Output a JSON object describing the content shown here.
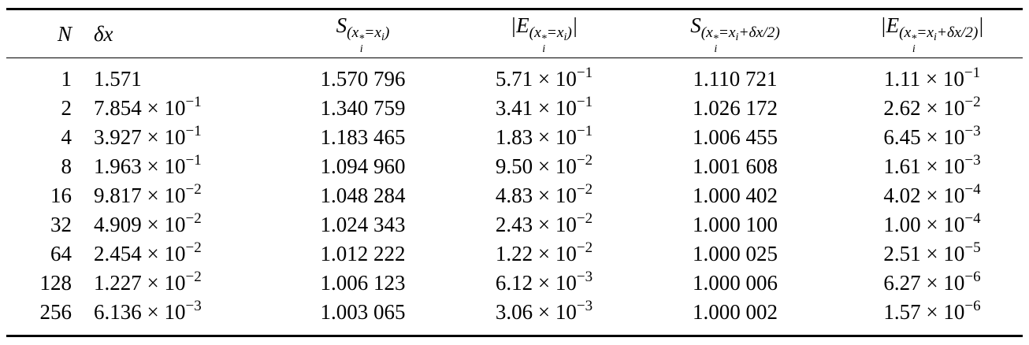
{
  "table": {
    "header": [
      [
        {
          "text": "N"
        }
      ],
      [
        {
          "text": "δx"
        }
      ],
      [
        {
          "text": "S",
          "sub": [
            {
              "text": "(x",
              "sub": [
                {
                  "text": "i"
                }
              ],
              "sup": [
                {
                  "text": "*"
                }
              ]
            },
            {
              "text": "=x",
              "sub": [
                {
                  "text": "i"
                }
              ]
            },
            {
              "text": ")"
            }
          ]
        }
      ],
      [
        {
          "text": "|E",
          "sub": [
            {
              "text": "(x",
              "sub": [
                {
                  "text": "i"
                }
              ],
              "sup": [
                {
                  "text": "*"
                }
              ]
            },
            {
              "text": "=x",
              "sub": [
                {
                  "text": "i"
                }
              ]
            },
            {
              "text": ")"
            }
          ]
        },
        {
          "text": "|"
        }
      ],
      [
        {
          "text": "S",
          "sub": [
            {
              "text": "(x",
              "sub": [
                {
                  "text": "i"
                }
              ],
              "sup": [
                {
                  "text": "*"
                }
              ]
            },
            {
              "text": "=x",
              "sub": [
                {
                  "text": "i"
                }
              ]
            },
            {
              "text": "+δx/2)"
            }
          ]
        }
      ],
      [
        {
          "text": "|E",
          "sub": [
            {
              "text": "(x",
              "sub": [
                {
                  "text": "i"
                }
              ],
              "sup": [
                {
                  "text": "*"
                }
              ]
            },
            {
              "text": "=x",
              "sub": [
                {
                  "text": "i"
                }
              ]
            },
            {
              "text": "+δx/2)"
            }
          ]
        },
        {
          "text": "|"
        }
      ]
    ],
    "rows": [
      [
        1,
        "1.571",
        "1.570 796",
        {
          "base": "5.71 × 10",
          "sup": "−1"
        },
        "1.110 721",
        {
          "base": "1.11 × 10",
          "sup": "−1"
        }
      ],
      [
        2,
        {
          "base": "7.854 × 10",
          "sup": "−1"
        },
        "1.340 759",
        {
          "base": "3.41 × 10",
          "sup": "−1"
        },
        "1.026 172",
        {
          "base": "2.62 × 10",
          "sup": "−2"
        }
      ],
      [
        4,
        {
          "base": "3.927 × 10",
          "sup": "−1"
        },
        "1.183 465",
        {
          "base": "1.83 × 10",
          "sup": "−1"
        },
        "1.006 455",
        {
          "base": "6.45 × 10",
          "sup": "−3"
        }
      ],
      [
        8,
        {
          "base": "1.963 × 10",
          "sup": "−1"
        },
        "1.094 960",
        {
          "base": "9.50 × 10",
          "sup": "−2"
        },
        "1.001 608",
        {
          "base": "1.61 × 10",
          "sup": "−3"
        }
      ],
      [
        16,
        {
          "base": "9.817 × 10",
          "sup": "−2"
        },
        "1.048 284",
        {
          "base": "4.83 × 10",
          "sup": "−2"
        },
        "1.000 402",
        {
          "base": "4.02 × 10",
          "sup": "−4"
        }
      ],
      [
        32,
        {
          "base": "4.909 × 10",
          "sup": "−2"
        },
        "1.024 343",
        {
          "base": "2.43 × 10",
          "sup": "−2"
        },
        "1.000 100",
        {
          "base": "1.00 × 10",
          "sup": "−4"
        }
      ],
      [
        64,
        {
          "base": "2.454 × 10",
          "sup": "−2"
        },
        "1.012 222",
        {
          "base": "1.22 × 10",
          "sup": "−2"
        },
        "1.000 025",
        {
          "base": "2.51 × 10",
          "sup": "−5"
        }
      ],
      [
        128,
        {
          "base": "1.227 × 10",
          "sup": "−2"
        },
        "1.006 123",
        {
          "base": "6.12 × 10",
          "sup": "−3"
        },
        "1.000 006",
        {
          "base": "6.27 × 10",
          "sup": "−6"
        }
      ],
      [
        256,
        {
          "base": "6.136 × 10",
          "sup": "−3"
        },
        "1.003 065",
        {
          "base": "3.06 × 10",
          "sup": "−3"
        },
        "1.000 002",
        {
          "base": "1.57 × 10",
          "sup": "−6"
        }
      ]
    ]
  }
}
